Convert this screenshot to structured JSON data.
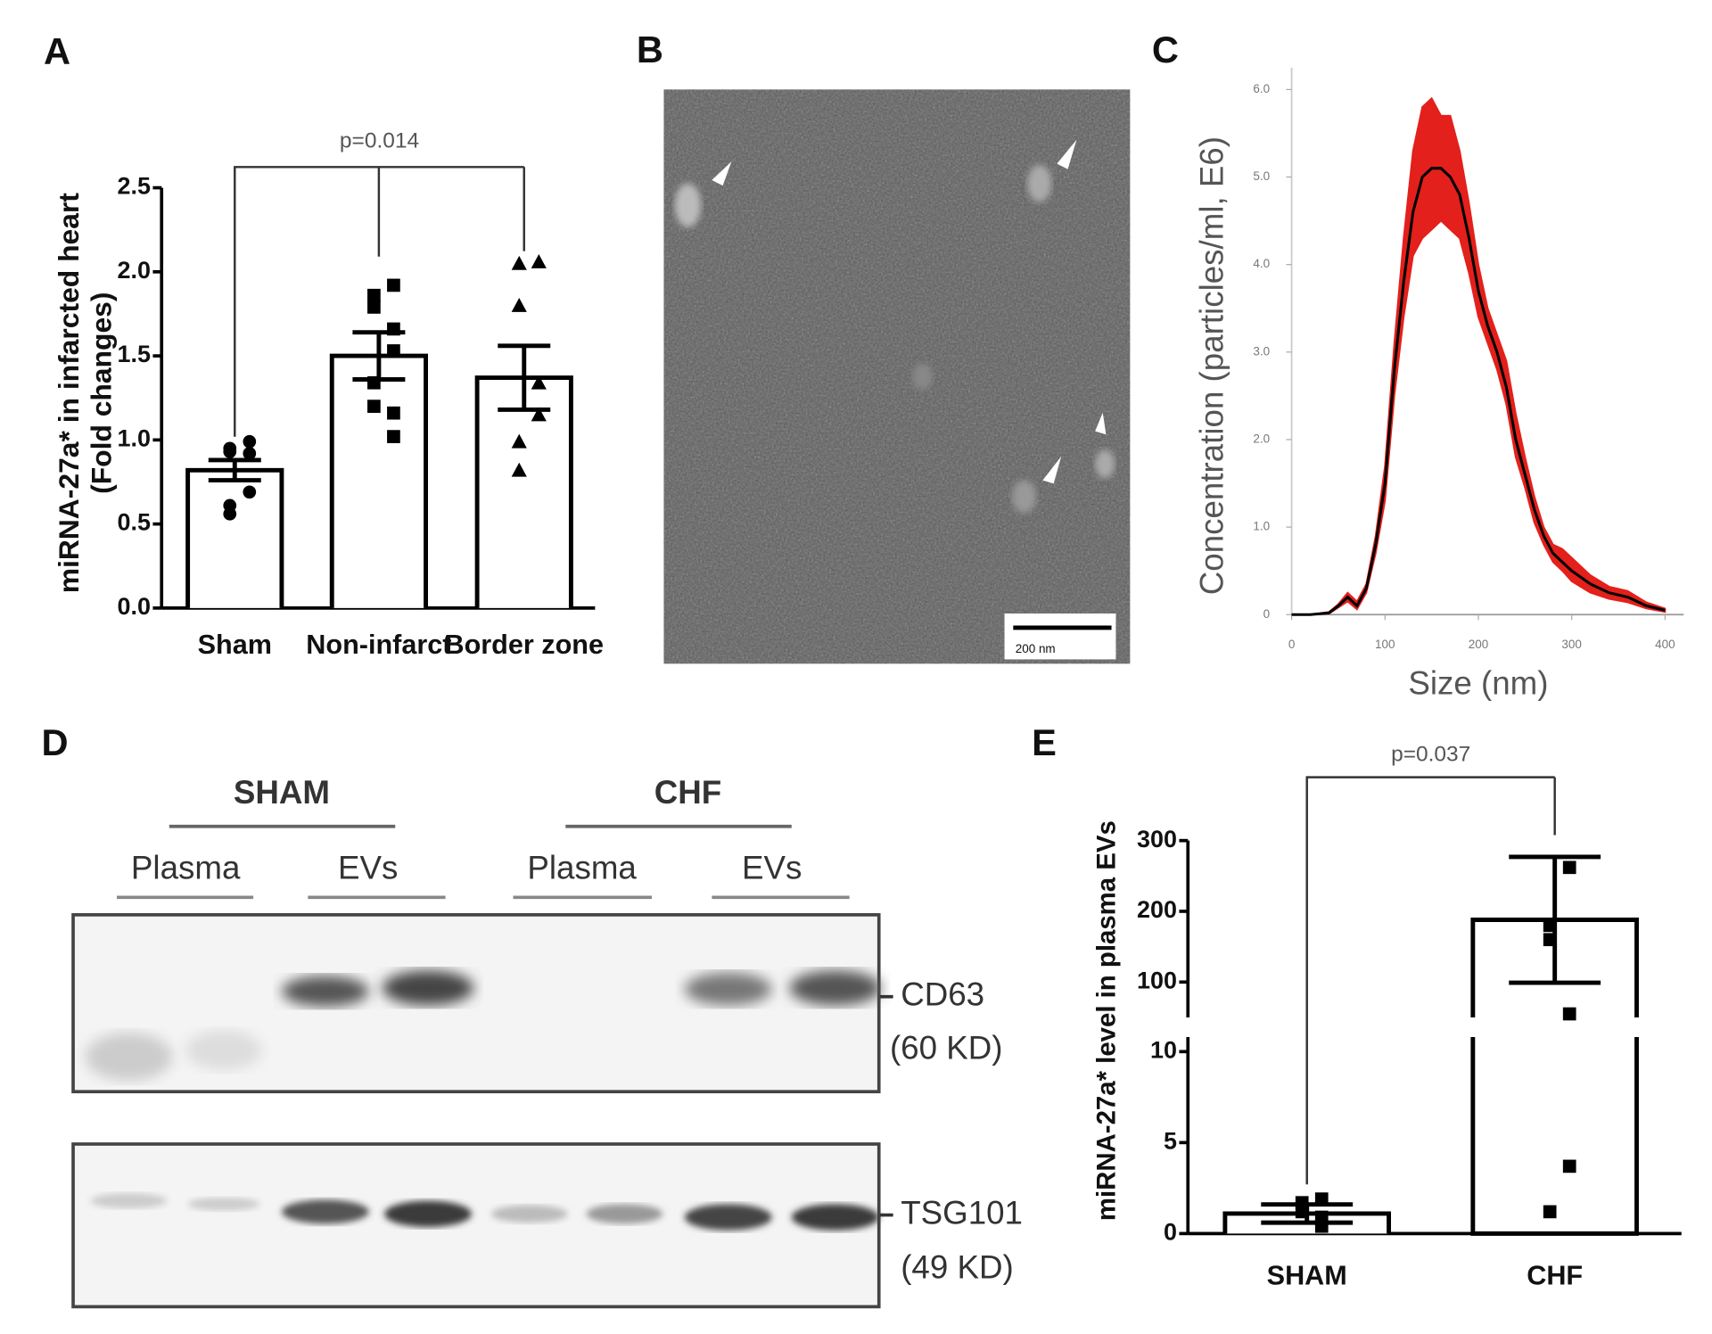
{
  "panel_labels": [
    "A",
    "B",
    "C",
    "D",
    "E"
  ],
  "chart_data": [
    {
      "type": "bar",
      "ylabel": [
        "miRNA-27a* in infarcted heart",
        "(Fold changes)"
      ],
      "categories": [
        "Sham",
        "Non-infarct",
        "Border zone"
      ],
      "values": [
        0.82,
        1.5,
        1.37
      ],
      "errors": [
        0.06,
        0.14,
        0.19
      ],
      "points": [
        [
          0.99,
          0.95,
          0.93,
          0.92,
          0.69,
          0.61,
          0.56
        ],
        [
          1.92,
          1.86,
          1.79,
          1.66,
          1.53,
          1.34,
          1.2,
          1.16,
          1.02
        ],
        [
          2.06,
          2.05,
          1.8,
          1.34,
          1.15,
          0.99,
          0.82
        ]
      ],
      "markers": [
        "circle",
        "square",
        "triangle"
      ],
      "color": "#000000",
      "ylim": [
        0,
        2.5
      ],
      "yticks": [
        {
          "value": 0,
          "label": "0.0"
        },
        0.5,
        {
          "value": 1,
          "label": "1.0"
        },
        1.5,
        {
          "value": 2,
          "label": "2.0"
        },
        2.5
      ],
      "annotation": "p=0.014"
    },
    {
      "type": "line",
      "xlabel": "Size (nm)",
      "ylabel": "Concentration (particles/ml, E6)",
      "x": [
        0,
        20,
        40,
        50,
        60,
        70,
        80,
        90,
        100,
        110,
        120,
        130,
        140,
        150,
        160,
        170,
        180,
        190,
        200,
        210,
        220,
        230,
        240,
        250,
        260,
        270,
        280,
        290,
        300,
        320,
        340,
        360,
        380,
        400
      ],
      "values": [
        0,
        0,
        0.02,
        0.1,
        0.2,
        0.1,
        0.3,
        0.8,
        1.5,
        2.8,
        3.8,
        4.6,
        5.0,
        5.1,
        5.1,
        5.0,
        4.8,
        4.3,
        3.7,
        3.3,
        3.0,
        2.6,
        2.0,
        1.6,
        1.2,
        0.9,
        0.7,
        0.6,
        0.5,
        0.35,
        0.25,
        0.2,
        0.1,
        0.05
      ],
      "band_upper": [
        0,
        0,
        0.03,
        0.12,
        0.25,
        0.15,
        0.35,
        0.9,
        1.7,
        3.1,
        4.3,
        5.3,
        5.8,
        5.9,
        5.7,
        5.7,
        5.3,
        4.7,
        4.0,
        3.5,
        3.2,
        2.9,
        2.3,
        1.8,
        1.35,
        1.0,
        0.8,
        0.75,
        0.65,
        0.45,
        0.32,
        0.27,
        0.14,
        0.07
      ],
      "band_lower": [
        0,
        0,
        0.01,
        0.08,
        0.15,
        0.06,
        0.25,
        0.7,
        1.3,
        2.5,
        3.4,
        4.1,
        4.3,
        4.4,
        4.5,
        4.4,
        4.3,
        3.9,
        3.4,
        3.1,
        2.8,
        2.4,
        1.8,
        1.45,
        1.05,
        0.8,
        0.6,
        0.5,
        0.38,
        0.25,
        0.18,
        0.14,
        0.07,
        0.03
      ],
      "color": "#000000",
      "band_color": "#e3201b",
      "xlim": [
        0,
        420
      ],
      "xticks": [
        0,
        100,
        200,
        300,
        400
      ],
      "ylim": [
        0,
        6
      ],
      "yticks": [
        0,
        {
          "value": 1,
          "label": "1.0"
        },
        {
          "value": 2,
          "label": "2.0"
        },
        {
          "value": 3,
          "label": "3.0"
        },
        {
          "value": 4,
          "label": "4.0"
        },
        {
          "value": 5,
          "label": "5.0"
        },
        {
          "value": 6,
          "label": "6.0"
        }
      ]
    },
    {
      "type": "bar",
      "ylabel": "miRNA-27a* level in plasma EVs",
      "categories": [
        "SHAM",
        "CHF"
      ],
      "values": [
        1.1,
        188
      ],
      "errors": [
        0.5,
        89
      ],
      "points": [
        [
          1.9,
          1.7,
          1.2,
          0.9,
          0.4
        ],
        [
          262,
          180,
          160,
          55,
          3.7,
          1.2
        ]
      ],
      "markers": [
        "square",
        "square"
      ],
      "color": "#000000",
      "ylim": [
        0,
        300
      ],
      "ybreak": [
        10.8,
        50
      ],
      "yticks": [
        0,
        5,
        10,
        100,
        200,
        300
      ],
      "annotation": "p=0.037"
    }
  ],
  "micrograph": {
    "scale_bar": "200 nm"
  },
  "blot": {
    "groups": [
      "SHAM",
      "CHF"
    ],
    "lanes": [
      "Plasma",
      "EVs",
      "Plasma",
      "EVs"
    ],
    "markers": [
      {
        "protein": "CD63",
        "size": "(60 KD)"
      },
      {
        "protein": "TSG101",
        "size": "(49 KD)"
      }
    ]
  }
}
